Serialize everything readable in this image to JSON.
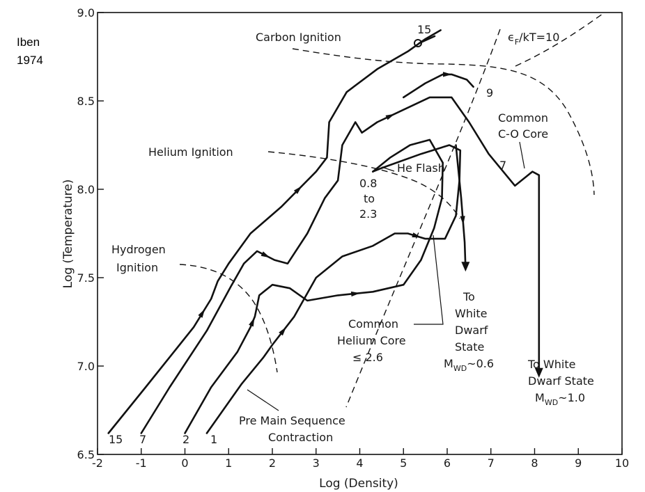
{
  "credit": {
    "line1": "Iben",
    "line2": "1974"
  },
  "chart_data": {
    "type": "line",
    "title": "",
    "xlabel": "Log  (Density)",
    "ylabel": "Log (Temperature)",
    "xlim": [
      -2,
      10
    ],
    "ylim": [
      6.5,
      9.0
    ],
    "x_ticks": [
      "-2",
      "-1",
      "0",
      "1",
      "2",
      "3",
      "4",
      "5",
      "6",
      "7",
      "8",
      "9",
      "10"
    ],
    "y_ticks": [
      "6.5",
      "7.0",
      "7.5",
      "8.0",
      "8.5",
      "9.0"
    ],
    "series": [
      {
        "name": "15",
        "points": [
          [
            -1.75,
            6.62
          ],
          [
            -0.9,
            6.88
          ],
          [
            0.2,
            7.22
          ],
          [
            0.6,
            7.38
          ],
          [
            0.75,
            7.48
          ],
          [
            1.0,
            7.58
          ],
          [
            1.5,
            7.75
          ],
          [
            2.2,
            7.9
          ],
          [
            3.0,
            8.1
          ],
          [
            3.25,
            8.18
          ],
          [
            3.3,
            8.38
          ],
          [
            3.7,
            8.55
          ],
          [
            4.4,
            8.68
          ],
          [
            5.1,
            8.78
          ],
          [
            5.5,
            8.85
          ],
          [
            5.85,
            8.9
          ]
        ]
      },
      {
        "name": "7",
        "points": [
          [
            -1.0,
            6.62
          ],
          [
            -0.35,
            6.88
          ],
          [
            0.5,
            7.2
          ],
          [
            1.05,
            7.45
          ],
          [
            1.35,
            7.58
          ],
          [
            1.65,
            7.65
          ],
          [
            2.05,
            7.6
          ],
          [
            2.35,
            7.58
          ],
          [
            2.8,
            7.75
          ],
          [
            3.2,
            7.95
          ],
          [
            3.5,
            8.05
          ],
          [
            3.6,
            8.25
          ],
          [
            3.9,
            8.38
          ],
          [
            4.05,
            8.32
          ],
          [
            4.4,
            8.38
          ],
          [
            5.0,
            8.45
          ],
          [
            5.6,
            8.52
          ],
          [
            6.1,
            8.52
          ],
          [
            6.5,
            8.38
          ],
          [
            6.95,
            8.2
          ],
          [
            7.35,
            8.08
          ],
          [
            7.55,
            8.02
          ],
          [
            7.75,
            8.06
          ],
          [
            7.95,
            8.1
          ],
          [
            8.1,
            8.08
          ],
          [
            8.1,
            7.85
          ],
          [
            8.1,
            7.5
          ],
          [
            8.1,
            7.15
          ],
          [
            8.1,
            6.95
          ]
        ]
      },
      {
        "name": "2",
        "points": [
          [
            0.0,
            6.62
          ],
          [
            0.6,
            6.88
          ],
          [
            1.2,
            7.08
          ],
          [
            1.5,
            7.22
          ],
          [
            1.6,
            7.28
          ],
          [
            1.7,
            7.4
          ],
          [
            2.0,
            7.46
          ],
          [
            2.4,
            7.44
          ],
          [
            2.8,
            7.37
          ],
          [
            3.5,
            7.4
          ],
          [
            4.3,
            7.42
          ],
          [
            5.0,
            7.46
          ],
          [
            5.4,
            7.6
          ],
          [
            5.7,
            7.78
          ],
          [
            5.88,
            7.95
          ],
          [
            5.9,
            8.15
          ],
          [
            5.6,
            8.28
          ],
          [
            5.15,
            8.25
          ],
          [
            4.7,
            8.18
          ],
          [
            4.3,
            8.1
          ]
        ]
      },
      {
        "name": "1",
        "points": [
          [
            0.5,
            6.62
          ],
          [
            1.3,
            6.9
          ],
          [
            1.8,
            7.05
          ],
          [
            2.0,
            7.12
          ],
          [
            2.5,
            7.28
          ],
          [
            3.0,
            7.5
          ],
          [
            3.6,
            7.62
          ],
          [
            4.3,
            7.68
          ],
          [
            4.8,
            7.75
          ],
          [
            5.1,
            7.75
          ],
          [
            5.5,
            7.72
          ],
          [
            5.95,
            7.72
          ],
          [
            6.2,
            7.85
          ],
          [
            6.28,
            8.05
          ],
          [
            6.3,
            8.22
          ],
          [
            6.05,
            8.25
          ],
          [
            5.4,
            8.2
          ],
          [
            4.5,
            8.12
          ],
          [
            4.3,
            8.1
          ]
        ]
      },
      {
        "name": "9",
        "points": [
          [
            5.0,
            8.52
          ],
          [
            5.5,
            8.6
          ],
          [
            5.9,
            8.65
          ],
          [
            6.1,
            8.65
          ],
          [
            6.45,
            8.62
          ],
          [
            6.6,
            8.58
          ]
        ]
      },
      {
        "name": "WD 0.6",
        "points": [
          [
            6.2,
            8.25
          ],
          [
            6.32,
            7.95
          ],
          [
            6.4,
            7.7
          ],
          [
            6.42,
            7.55
          ]
        ]
      }
    ],
    "annotations": [
      "Carbon Ignition",
      "Helium Ignition",
      "Hydrogen Ignition",
      "He Flash",
      "0.8",
      "to",
      "2.3",
      "Common",
      "C-O Core",
      "Common",
      "Helium Core",
      "≤ 2.6",
      "To",
      "White",
      "Dwarf",
      "State",
      "M",
      "WD",
      "~0.6",
      "To White",
      "Dwarf State",
      "M",
      "WD",
      "~1.0",
      "Pre Main Sequence",
      "Contraction",
      "ϵ",
      "F",
      "/kT=10",
      "15",
      "9",
      "7",
      "15",
      "7",
      "2",
      "1"
    ],
    "legend": "none",
    "grid": false
  }
}
